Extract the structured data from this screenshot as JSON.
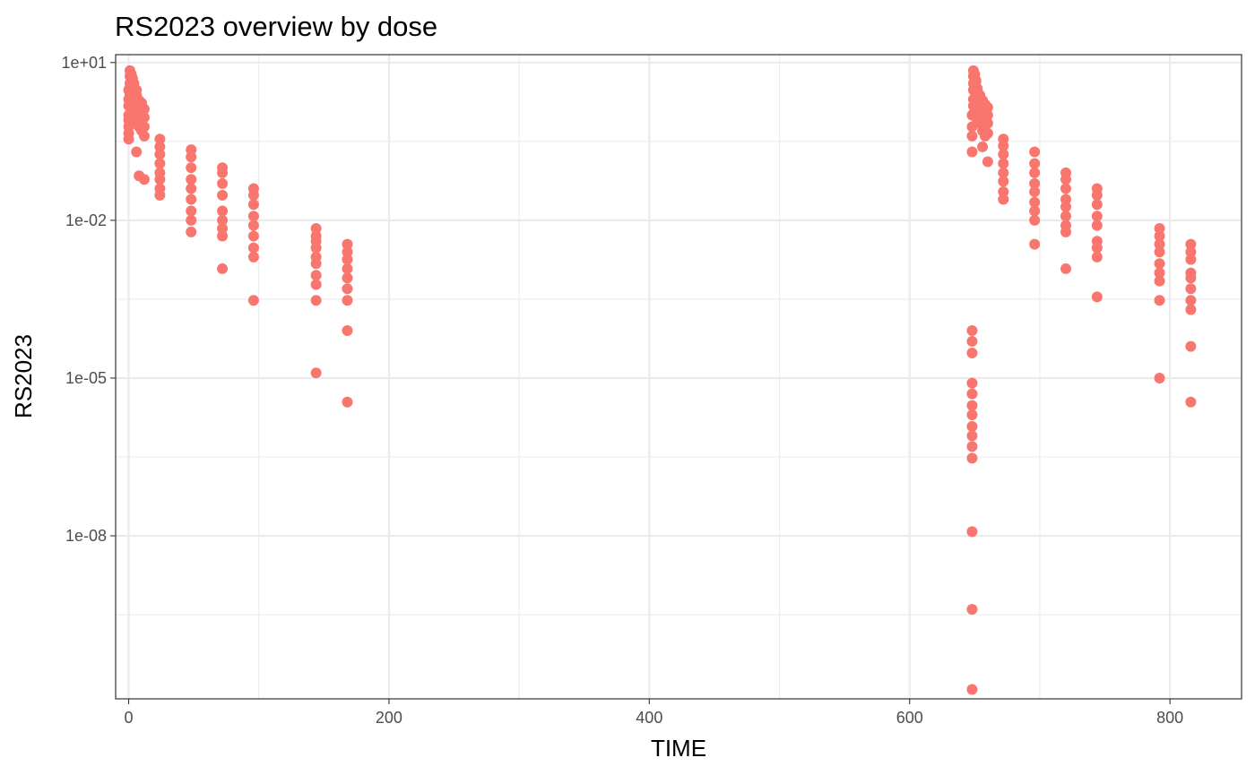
{
  "chart_data": {
    "type": "scatter",
    "title": "RS2023 overview by dose",
    "xlabel": "TIME",
    "ylabel": "RS2023",
    "xlim": [
      -10,
      855
    ],
    "ylim_log10": [
      -11.1,
      1.15
    ],
    "y_scale": "log10",
    "x_ticks": [
      {
        "value": 0,
        "label": "0"
      },
      {
        "value": 200,
        "label": "200"
      },
      {
        "value": 400,
        "label": "400"
      },
      {
        "value": 600,
        "label": "600"
      },
      {
        "value": 800,
        "label": "800"
      }
    ],
    "x_minor": [
      100,
      300,
      500,
      700
    ],
    "y_ticks": [
      {
        "exp": 1,
        "label": "1e+01"
      },
      {
        "exp": -2,
        "label": "1e-02"
      },
      {
        "exp": -5,
        "label": "1e-05"
      },
      {
        "exp": -8,
        "label": "1e-08"
      }
    ],
    "y_minor_exp": [
      -0.5,
      -3.5,
      -6.5,
      -9.5
    ],
    "grid": true,
    "legend": "none",
    "point_color": "#F8766D",
    "series": [
      {
        "points": [
          {
            "x": 0,
            "y": 0.35
          },
          {
            "x": 0,
            "y": 0.45
          },
          {
            "x": 0,
            "y": 0.6
          },
          {
            "x": 0,
            "y": 0.8
          },
          {
            "x": 0,
            "y": 1.0
          },
          {
            "x": 0,
            "y": 1.5
          },
          {
            "x": 0,
            "y": 2.0
          },
          {
            "x": 0,
            "y": 3.0
          },
          {
            "x": 1,
            "y": 1.0
          },
          {
            "x": 1,
            "y": 1.5
          },
          {
            "x": 1,
            "y": 2.0
          },
          {
            "x": 1,
            "y": 2.5
          },
          {
            "x": 1,
            "y": 3.0
          },
          {
            "x": 1,
            "y": 4.0
          },
          {
            "x": 1,
            "y": 5.5
          },
          {
            "x": 1,
            "y": 7.0
          },
          {
            "x": 2,
            "y": 1.3
          },
          {
            "x": 2,
            "y": 2.0
          },
          {
            "x": 2,
            "y": 3.0
          },
          {
            "x": 2,
            "y": 4.0
          },
          {
            "x": 2,
            "y": 5.0
          },
          {
            "x": 2,
            "y": 6.0
          },
          {
            "x": 3,
            "y": 1.0
          },
          {
            "x": 3,
            "y": 1.6
          },
          {
            "x": 3,
            "y": 2.5
          },
          {
            "x": 3,
            "y": 3.5
          },
          {
            "x": 3,
            "y": 5.0
          },
          {
            "x": 4,
            "y": 0.9
          },
          {
            "x": 4,
            "y": 1.4
          },
          {
            "x": 4,
            "y": 2.0
          },
          {
            "x": 4,
            "y": 3.0
          },
          {
            "x": 4,
            "y": 4.0
          },
          {
            "x": 6,
            "y": 0.7
          },
          {
            "x": 6,
            "y": 1.0
          },
          {
            "x": 6,
            "y": 1.6
          },
          {
            "x": 6,
            "y": 2.4
          },
          {
            "x": 6,
            "y": 3.0
          },
          {
            "x": 6,
            "y": 0.2
          },
          {
            "x": 8,
            "y": 0.6
          },
          {
            "x": 8,
            "y": 0.9
          },
          {
            "x": 8,
            "y": 1.3
          },
          {
            "x": 8,
            "y": 1.9
          },
          {
            "x": 8,
            "y": 0.07
          },
          {
            "x": 10,
            "y": 0.5
          },
          {
            "x": 10,
            "y": 0.8
          },
          {
            "x": 10,
            "y": 1.2
          },
          {
            "x": 10,
            "y": 1.7
          },
          {
            "x": 12,
            "y": 0.4
          },
          {
            "x": 12,
            "y": 0.6
          },
          {
            "x": 12,
            "y": 0.9
          },
          {
            "x": 12,
            "y": 1.3
          },
          {
            "x": 12,
            "y": 0.06
          },
          {
            "x": 24,
            "y": 0.03
          },
          {
            "x": 24,
            "y": 0.04
          },
          {
            "x": 24,
            "y": 0.06
          },
          {
            "x": 24,
            "y": 0.08
          },
          {
            "x": 24,
            "y": 0.12
          },
          {
            "x": 24,
            "y": 0.18
          },
          {
            "x": 24,
            "y": 0.25
          },
          {
            "x": 24,
            "y": 0.35
          },
          {
            "x": 48,
            "y": 0.006
          },
          {
            "x": 48,
            "y": 0.01
          },
          {
            "x": 48,
            "y": 0.015
          },
          {
            "x": 48,
            "y": 0.025
          },
          {
            "x": 48,
            "y": 0.04
          },
          {
            "x": 48,
            "y": 0.06
          },
          {
            "x": 48,
            "y": 0.1
          },
          {
            "x": 48,
            "y": 0.16
          },
          {
            "x": 48,
            "y": 0.22
          },
          {
            "x": 72,
            "y": 0.0012
          },
          {
            "x": 72,
            "y": 0.005
          },
          {
            "x": 72,
            "y": 0.007
          },
          {
            "x": 72,
            "y": 0.01
          },
          {
            "x": 72,
            "y": 0.015
          },
          {
            "x": 72,
            "y": 0.03
          },
          {
            "x": 72,
            "y": 0.05
          },
          {
            "x": 72,
            "y": 0.08
          },
          {
            "x": 72,
            "y": 0.1
          },
          {
            "x": 96,
            "y": 0.0003
          },
          {
            "x": 96,
            "y": 0.002
          },
          {
            "x": 96,
            "y": 0.003
          },
          {
            "x": 96,
            "y": 0.005
          },
          {
            "x": 96,
            "y": 0.008
          },
          {
            "x": 96,
            "y": 0.012
          },
          {
            "x": 96,
            "y": 0.02
          },
          {
            "x": 96,
            "y": 0.03
          },
          {
            "x": 96,
            "y": 0.04
          },
          {
            "x": 144,
            "y": 1.25e-05
          },
          {
            "x": 144,
            "y": 0.0003
          },
          {
            "x": 144,
            "y": 0.0006
          },
          {
            "x": 144,
            "y": 0.0009
          },
          {
            "x": 144,
            "y": 0.0015
          },
          {
            "x": 144,
            "y": 0.002
          },
          {
            "x": 144,
            "y": 0.003
          },
          {
            "x": 144,
            "y": 0.004
          },
          {
            "x": 144,
            "y": 0.005
          },
          {
            "x": 144,
            "y": 0.007
          },
          {
            "x": 168,
            "y": 3.5e-06
          },
          {
            "x": 168,
            "y": 8e-05
          },
          {
            "x": 168,
            "y": 0.0003
          },
          {
            "x": 168,
            "y": 0.0005
          },
          {
            "x": 168,
            "y": 0.0008
          },
          {
            "x": 168,
            "y": 0.0012
          },
          {
            "x": 168,
            "y": 0.0018
          },
          {
            "x": 168,
            "y": 0.0025
          },
          {
            "x": 168,
            "y": 0.0035
          },
          {
            "x": 648,
            "y": 1.2e-11
          },
          {
            "x": 648,
            "y": 4e-10
          },
          {
            "x": 648,
            "y": 1.2e-08
          },
          {
            "x": 648,
            "y": 3e-07
          },
          {
            "x": 648,
            "y": 5e-07
          },
          {
            "x": 648,
            "y": 8e-07
          },
          {
            "x": 648,
            "y": 1.2e-06
          },
          {
            "x": 648,
            "y": 2e-06
          },
          {
            "x": 648,
            "y": 3e-06
          },
          {
            "x": 648,
            "y": 5e-06
          },
          {
            "x": 648,
            "y": 8e-06
          },
          {
            "x": 648,
            "y": 3e-05
          },
          {
            "x": 648,
            "y": 5e-05
          },
          {
            "x": 648,
            "y": 8e-05
          },
          {
            "x": 648,
            "y": 0.2
          },
          {
            "x": 648,
            "y": 0.4
          },
          {
            "x": 648,
            "y": 0.6
          },
          {
            "x": 648,
            "y": 1.0
          },
          {
            "x": 649,
            "y": 1.5
          },
          {
            "x": 649,
            "y": 2.0
          },
          {
            "x": 649,
            "y": 3.0
          },
          {
            "x": 649,
            "y": 4.0
          },
          {
            "x": 649,
            "y": 5.5
          },
          {
            "x": 649,
            "y": 7.0
          },
          {
            "x": 650,
            "y": 1.2
          },
          {
            "x": 650,
            "y": 2.0
          },
          {
            "x": 650,
            "y": 3.0
          },
          {
            "x": 650,
            "y": 4.0
          },
          {
            "x": 650,
            "y": 5.0
          },
          {
            "x": 650,
            "y": 6.0
          },
          {
            "x": 651,
            "y": 1.0
          },
          {
            "x": 651,
            "y": 1.8
          },
          {
            "x": 651,
            "y": 2.5
          },
          {
            "x": 651,
            "y": 3.5
          },
          {
            "x": 651,
            "y": 4.5
          },
          {
            "x": 652,
            "y": 0.8
          },
          {
            "x": 652,
            "y": 1.4
          },
          {
            "x": 652,
            "y": 2.2
          },
          {
            "x": 652,
            "y": 3.2
          },
          {
            "x": 654,
            "y": 0.7
          },
          {
            "x": 654,
            "y": 1.0
          },
          {
            "x": 654,
            "y": 1.6
          },
          {
            "x": 654,
            "y": 2.4
          },
          {
            "x": 656,
            "y": 0.5
          },
          {
            "x": 656,
            "y": 0.9
          },
          {
            "x": 656,
            "y": 1.3
          },
          {
            "x": 656,
            "y": 1.9
          },
          {
            "x": 656,
            "y": 0.25
          },
          {
            "x": 658,
            "y": 0.4
          },
          {
            "x": 658,
            "y": 0.7
          },
          {
            "x": 658,
            "y": 1.1
          },
          {
            "x": 658,
            "y": 1.6
          },
          {
            "x": 660,
            "y": 0.45
          },
          {
            "x": 660,
            "y": 0.7
          },
          {
            "x": 660,
            "y": 1.0
          },
          {
            "x": 660,
            "y": 1.4
          },
          {
            "x": 660,
            "y": 0.13
          },
          {
            "x": 672,
            "y": 0.025
          },
          {
            "x": 672,
            "y": 0.035
          },
          {
            "x": 672,
            "y": 0.055
          },
          {
            "x": 672,
            "y": 0.08
          },
          {
            "x": 672,
            "y": 0.12
          },
          {
            "x": 672,
            "y": 0.18
          },
          {
            "x": 672,
            "y": 0.26
          },
          {
            "x": 672,
            "y": 0.35
          },
          {
            "x": 696,
            "y": 0.0035
          },
          {
            "x": 696,
            "y": 0.01
          },
          {
            "x": 696,
            "y": 0.015
          },
          {
            "x": 696,
            "y": 0.022
          },
          {
            "x": 696,
            "y": 0.035
          },
          {
            "x": 696,
            "y": 0.05
          },
          {
            "x": 696,
            "y": 0.08
          },
          {
            "x": 696,
            "y": 0.12
          },
          {
            "x": 696,
            "y": 0.2
          },
          {
            "x": 720,
            "y": 0.0012
          },
          {
            "x": 720,
            "y": 0.006
          },
          {
            "x": 720,
            "y": 0.008
          },
          {
            "x": 720,
            "y": 0.012
          },
          {
            "x": 720,
            "y": 0.018
          },
          {
            "x": 720,
            "y": 0.025
          },
          {
            "x": 720,
            "y": 0.04
          },
          {
            "x": 720,
            "y": 0.06
          },
          {
            "x": 720,
            "y": 0.08
          },
          {
            "x": 744,
            "y": 0.00035
          },
          {
            "x": 744,
            "y": 0.002
          },
          {
            "x": 744,
            "y": 0.003
          },
          {
            "x": 744,
            "y": 0.004
          },
          {
            "x": 744,
            "y": 0.008
          },
          {
            "x": 744,
            "y": 0.012
          },
          {
            "x": 744,
            "y": 0.02
          },
          {
            "x": 744,
            "y": 0.03
          },
          {
            "x": 744,
            "y": 0.04
          },
          {
            "x": 792,
            "y": 1e-05
          },
          {
            "x": 792,
            "y": 0.0003
          },
          {
            "x": 792,
            "y": 0.0007
          },
          {
            "x": 792,
            "y": 0.001
          },
          {
            "x": 792,
            "y": 0.0015
          },
          {
            "x": 792,
            "y": 0.0025
          },
          {
            "x": 792,
            "y": 0.0035
          },
          {
            "x": 792,
            "y": 0.005
          },
          {
            "x": 792,
            "y": 0.007
          },
          {
            "x": 816,
            "y": 3.5e-06
          },
          {
            "x": 816,
            "y": 4e-05
          },
          {
            "x": 816,
            "y": 0.0002
          },
          {
            "x": 816,
            "y": 0.0003
          },
          {
            "x": 816,
            "y": 0.0005
          },
          {
            "x": 816,
            "y": 0.0008
          },
          {
            "x": 816,
            "y": 0.001
          },
          {
            "x": 816,
            "y": 0.0018
          },
          {
            "x": 816,
            "y": 0.0025
          },
          {
            "x": 816,
            "y": 0.0035
          }
        ]
      }
    ]
  }
}
